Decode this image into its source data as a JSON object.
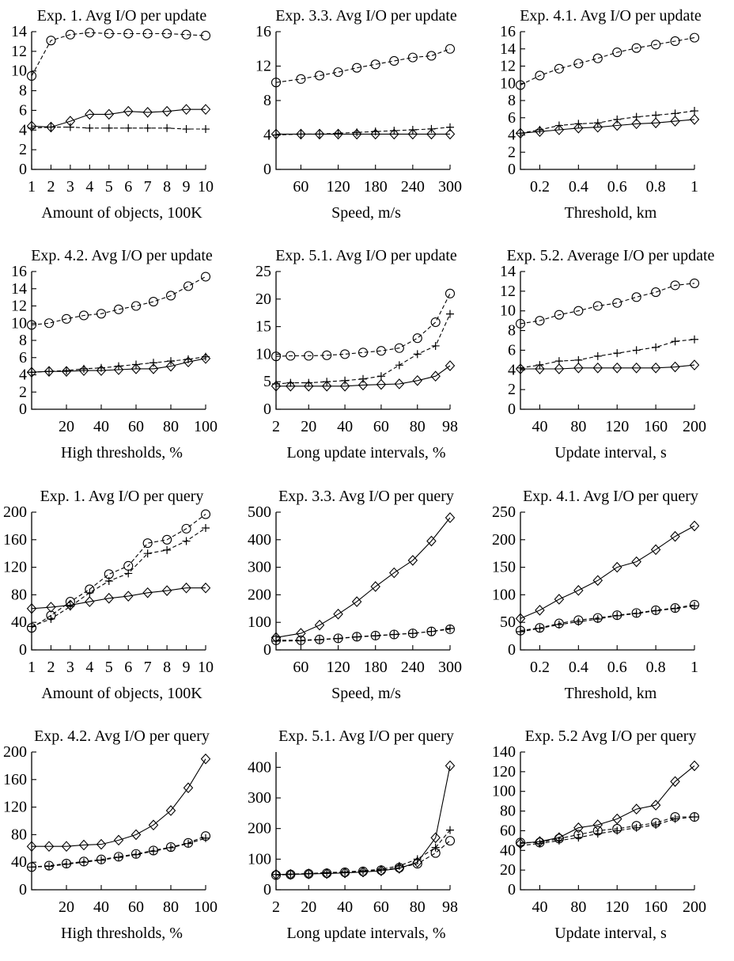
{
  "chart_data": [
    {
      "id": "u1",
      "type": "line",
      "title": "Exp. 1. Avg I/O per update",
      "xlabel": "Amount of objects, 100K",
      "xlim": [
        1,
        10
      ],
      "ylim": [
        0,
        14
      ],
      "xticks": [
        1,
        2,
        3,
        4,
        5,
        6,
        7,
        8,
        9,
        10
      ],
      "yticks": [
        0,
        2,
        4,
        6,
        8,
        10,
        12,
        14
      ],
      "x": [
        1,
        2,
        3,
        4,
        5,
        6,
        7,
        8,
        9,
        10
      ],
      "series": [
        {
          "marker": "circle",
          "dash": true,
          "values": [
            9.5,
            13.1,
            13.7,
            13.9,
            13.8,
            13.8,
            13.8,
            13.8,
            13.7,
            13.6
          ]
        },
        {
          "marker": "plus",
          "dash": true,
          "values": [
            4.2,
            4.3,
            4.3,
            4.2,
            4.2,
            4.2,
            4.2,
            4.2,
            4.1,
            4.1
          ]
        },
        {
          "marker": "diamond",
          "dash": false,
          "values": [
            4.4,
            4.3,
            4.9,
            5.6,
            5.6,
            5.9,
            5.8,
            5.9,
            6.1,
            6.1
          ]
        }
      ]
    },
    {
      "id": "u2",
      "type": "line",
      "title": "Exp. 3.3. Avg I/O per update",
      "xlabel": "Speed, m/s",
      "xlim": [
        20,
        300
      ],
      "ylim": [
        0,
        16
      ],
      "xticks": [
        60,
        120,
        180,
        240,
        300
      ],
      "yticks": [
        0,
        4,
        8,
        12,
        16
      ],
      "x": [
        20,
        60,
        90,
        120,
        150,
        180,
        210,
        240,
        270,
        300
      ],
      "series": [
        {
          "marker": "circle",
          "dash": true,
          "values": [
            10.1,
            10.5,
            10.9,
            11.3,
            11.8,
            12.2,
            12.6,
            13.0,
            13.2,
            14.0
          ]
        },
        {
          "marker": "plus",
          "dash": true,
          "values": [
            4.0,
            4.1,
            4.1,
            4.2,
            4.3,
            4.4,
            4.5,
            4.6,
            4.7,
            4.9
          ]
        },
        {
          "marker": "diamond",
          "dash": false,
          "values": [
            4.1,
            4.1,
            4.1,
            4.1,
            4.1,
            4.1,
            4.1,
            4.1,
            4.1,
            4.1
          ]
        }
      ]
    },
    {
      "id": "u3",
      "type": "line",
      "title": "Exp. 4.1. Avg I/O per update",
      "xlabel": "Threshold, km",
      "xlim": [
        0.1,
        1
      ],
      "ylim": [
        0,
        16
      ],
      "xticks": [
        0.2,
        0.4,
        0.6,
        0.8,
        1
      ],
      "yticks": [
        0,
        2,
        4,
        6,
        8,
        10,
        12,
        14,
        16
      ],
      "xticklabels": [
        "0.2",
        "0.4",
        "0.6",
        "0.8",
        "1"
      ],
      "x": [
        0.1,
        0.2,
        0.3,
        0.4,
        0.5,
        0.6,
        0.7,
        0.8,
        0.9,
        1.0
      ],
      "series": [
        {
          "marker": "circle",
          "dash": true,
          "values": [
            9.8,
            10.9,
            11.7,
            12.3,
            12.9,
            13.6,
            14.1,
            14.5,
            14.9,
            15.3
          ]
        },
        {
          "marker": "plus",
          "dash": true,
          "values": [
            4.2,
            4.6,
            5.1,
            5.3,
            5.4,
            5.8,
            6.1,
            6.3,
            6.5,
            6.8
          ]
        },
        {
          "marker": "diamond",
          "dash": false,
          "values": [
            4.2,
            4.4,
            4.6,
            4.8,
            4.9,
            5.1,
            5.3,
            5.4,
            5.6,
            5.8
          ]
        }
      ]
    },
    {
      "id": "u4",
      "type": "line",
      "title": "Exp. 4.2. Avg I/O per update",
      "xlabel": "High thresholds, %",
      "xlim": [
        0,
        100
      ],
      "ylim": [
        0,
        16
      ],
      "xticks": [
        20,
        40,
        60,
        80,
        100
      ],
      "yticks": [
        0,
        2,
        4,
        6,
        8,
        10,
        12,
        14,
        16
      ],
      "x": [
        0,
        10,
        20,
        30,
        40,
        50,
        60,
        70,
        80,
        90,
        100
      ],
      "series": [
        {
          "marker": "circle",
          "dash": true,
          "values": [
            9.8,
            10.0,
            10.5,
            10.9,
            11.1,
            11.6,
            12.0,
            12.5,
            13.2,
            14.3,
            15.4
          ]
        },
        {
          "marker": "plus",
          "dash": true,
          "values": [
            4.3,
            4.4,
            4.5,
            4.7,
            4.8,
            5.0,
            5.2,
            5.4,
            5.6,
            5.8,
            6.1
          ]
        },
        {
          "marker": "diamond",
          "dash": false,
          "values": [
            4.3,
            4.4,
            4.4,
            4.5,
            4.5,
            4.6,
            4.7,
            4.7,
            5.0,
            5.5,
            5.9
          ]
        }
      ]
    },
    {
      "id": "u5",
      "type": "line",
      "title": "Exp. 5.1. Avg I/O per update",
      "xlabel": "Long update intervals, %",
      "xlim": [
        2,
        98
      ],
      "ylim": [
        0,
        25
      ],
      "xticks": [
        2,
        20,
        40,
        60,
        80,
        98
      ],
      "yticks": [
        0,
        5,
        10,
        15,
        20,
        25
      ],
      "x": [
        2,
        10,
        20,
        30,
        40,
        50,
        60,
        70,
        80,
        90,
        98
      ],
      "series": [
        {
          "marker": "circle",
          "dash": true,
          "values": [
            9.6,
            9.7,
            9.7,
            9.8,
            10.0,
            10.3,
            10.6,
            11.1,
            12.9,
            15.8,
            21.0
          ]
        },
        {
          "marker": "plus",
          "dash": true,
          "values": [
            4.6,
            4.8,
            4.8,
            5.0,
            5.2,
            5.5,
            6.0,
            8.0,
            10.0,
            11.5,
            17.3
          ]
        },
        {
          "marker": "diamond",
          "dash": false,
          "values": [
            4.2,
            4.2,
            4.2,
            4.2,
            4.2,
            4.4,
            4.5,
            4.6,
            5.2,
            6.0,
            7.9
          ]
        }
      ]
    },
    {
      "id": "u6",
      "type": "line",
      "title": "Exp. 5.2. Average I/O per update",
      "xlabel": "Update interval, s",
      "xlim": [
        20,
        200
      ],
      "ylim": [
        0,
        14
      ],
      "xticks": [
        40,
        80,
        120,
        160,
        200
      ],
      "yticks": [
        0,
        2,
        4,
        6,
        8,
        10,
        12,
        14
      ],
      "x": [
        20,
        40,
        60,
        80,
        100,
        120,
        140,
        160,
        180,
        200
      ],
      "series": [
        {
          "marker": "circle",
          "dash": true,
          "values": [
            8.7,
            9.0,
            9.6,
            10.0,
            10.5,
            10.8,
            11.4,
            11.9,
            12.6,
            12.8
          ]
        },
        {
          "marker": "plus",
          "dash": true,
          "values": [
            4.2,
            4.5,
            4.9,
            5.0,
            5.4,
            5.7,
            6.0,
            6.3,
            6.9,
            7.1
          ]
        },
        {
          "marker": "diamond",
          "dash": false,
          "values": [
            4.1,
            4.1,
            4.1,
            4.2,
            4.2,
            4.2,
            4.2,
            4.2,
            4.3,
            4.5
          ]
        }
      ]
    },
    {
      "id": "q1",
      "type": "line",
      "title": "Exp. 1. Avg I/O per query",
      "xlabel": "Amount of objects, 100K",
      "xlim": [
        1,
        10
      ],
      "ylim": [
        0,
        200
      ],
      "xticks": [
        1,
        2,
        3,
        4,
        5,
        6,
        7,
        8,
        9,
        10
      ],
      "yticks": [
        0,
        40,
        80,
        120,
        160,
        200
      ],
      "x": [
        1,
        2,
        3,
        4,
        5,
        6,
        7,
        8,
        9,
        10
      ],
      "series": [
        {
          "marker": "circle",
          "dash": true,
          "values": [
            32,
            50,
            70,
            88,
            110,
            122,
            155,
            160,
            176,
            197
          ]
        },
        {
          "marker": "plus",
          "dash": true,
          "values": [
            34,
            45,
            63,
            83,
            100,
            111,
            140,
            145,
            158,
            177
          ]
        },
        {
          "marker": "diamond",
          "dash": false,
          "values": [
            60,
            62,
            65,
            70,
            75,
            78,
            83,
            86,
            90,
            90
          ]
        }
      ]
    },
    {
      "id": "q2",
      "type": "line",
      "title": "Exp. 3.3. Avg I/O per query",
      "xlabel": "Speed, m/s",
      "xlim": [
        20,
        300
      ],
      "ylim": [
        0,
        500
      ],
      "xticks": [
        60,
        120,
        180,
        240,
        300
      ],
      "yticks": [
        0,
        100,
        200,
        300,
        400,
        500
      ],
      "x": [
        20,
        60,
        90,
        120,
        150,
        180,
        210,
        240,
        270,
        300
      ],
      "series": [
        {
          "marker": "diamond",
          "dash": false,
          "values": [
            45,
            60,
            90,
            130,
            175,
            230,
            280,
            325,
            395,
            480
          ]
        },
        {
          "marker": "circle",
          "dash": true,
          "values": [
            35,
            35,
            38,
            42,
            48,
            52,
            56,
            60,
            67,
            75
          ]
        },
        {
          "marker": "plus",
          "dash": true,
          "values": [
            32,
            33,
            37,
            41,
            47,
            51,
            56,
            60,
            67,
            78
          ]
        }
      ]
    },
    {
      "id": "q3",
      "type": "line",
      "title": "Exp. 4.1. Avg I/O per query",
      "xlabel": "Threshold, km",
      "xlim": [
        0.1,
        1
      ],
      "ylim": [
        0,
        250
      ],
      "xticks": [
        0.2,
        0.4,
        0.6,
        0.8,
        1
      ],
      "yticks": [
        0,
        50,
        100,
        150,
        200,
        250
      ],
      "xticklabels": [
        "0.2",
        "0.4",
        "0.6",
        "0.8",
        "1"
      ],
      "x": [
        0.1,
        0.2,
        0.3,
        0.4,
        0.5,
        0.6,
        0.7,
        0.8,
        0.9,
        1.0
      ],
      "series": [
        {
          "marker": "diamond",
          "dash": false,
          "values": [
            57,
            72,
            92,
            108,
            126,
            150,
            160,
            182,
            206,
            225
          ]
        },
        {
          "marker": "circle",
          "dash": true,
          "values": [
            35,
            40,
            48,
            54,
            58,
            63,
            67,
            72,
            76,
            82
          ]
        },
        {
          "marker": "plus",
          "dash": true,
          "values": [
            33,
            39,
            46,
            51,
            56,
            62,
            66,
            71,
            75,
            80
          ]
        }
      ]
    },
    {
      "id": "q4",
      "type": "line",
      "title": "Exp. 4.2. Avg I/O per query",
      "xlabel": "High thresholds, %",
      "xlim": [
        0,
        100
      ],
      "ylim": [
        0,
        200
      ],
      "xticks": [
        20,
        40,
        60,
        80,
        100
      ],
      "yticks": [
        0,
        40,
        80,
        120,
        160,
        200
      ],
      "x": [
        0,
        10,
        20,
        30,
        40,
        50,
        60,
        70,
        80,
        90,
        100
      ],
      "series": [
        {
          "marker": "diamond",
          "dash": false,
          "values": [
            63,
            63,
            63,
            65,
            66,
            72,
            80,
            94,
            115,
            148,
            190
          ]
        },
        {
          "marker": "circle",
          "dash": true,
          "values": [
            33,
            35,
            38,
            41,
            44,
            48,
            52,
            57,
            62,
            68,
            78
          ]
        },
        {
          "marker": "plus",
          "dash": true,
          "values": [
            33,
            34,
            37,
            40,
            43,
            47,
            51,
            56,
            61,
            67,
            75
          ]
        }
      ]
    },
    {
      "id": "q5",
      "type": "line",
      "title": "Exp. 5.1. Avg I/O per query",
      "xlabel": "Long update intervals, %",
      "xlim": [
        2,
        98
      ],
      "ylim": [
        0,
        450
      ],
      "xticks": [
        2,
        20,
        40,
        60,
        80,
        98
      ],
      "yticks": [
        0,
        100,
        200,
        300,
        400
      ],
      "x": [
        2,
        10,
        20,
        30,
        40,
        50,
        60,
        70,
        80,
        90,
        98
      ],
      "series": [
        {
          "marker": "diamond",
          "dash": false,
          "values": [
            50,
            50,
            52,
            53,
            55,
            58,
            62,
            70,
            90,
            170,
            405
          ]
        },
        {
          "marker": "plus",
          "dash": true,
          "values": [
            50,
            51,
            53,
            56,
            58,
            62,
            67,
            78,
            100,
            138,
            195
          ]
        },
        {
          "marker": "circle",
          "dash": true,
          "values": [
            48,
            50,
            52,
            54,
            57,
            60,
            64,
            72,
            85,
            120,
            160
          ]
        }
      ]
    },
    {
      "id": "q6",
      "type": "line",
      "title": "Exp. 5.2 Avg I/O per query",
      "xlabel": "Update interval, s",
      "xlim": [
        20,
        200
      ],
      "ylim": [
        0,
        140
      ],
      "xticks": [
        40,
        80,
        120,
        160,
        200
      ],
      "yticks": [
        0,
        20,
        40,
        60,
        80,
        100,
        120,
        140
      ],
      "x": [
        20,
        40,
        60,
        80,
        100,
        120,
        140,
        160,
        180,
        200
      ],
      "series": [
        {
          "marker": "diamond",
          "dash": false,
          "values": [
            47,
            49,
            53,
            63,
            66,
            72,
            82,
            86,
            110,
            126
          ]
        },
        {
          "marker": "circle",
          "dash": true,
          "values": [
            48,
            48,
            52,
            56,
            60,
            62,
            65,
            68,
            74,
            74
          ]
        },
        {
          "marker": "plus",
          "dash": true,
          "values": [
            45,
            47,
            50,
            53,
            57,
            60,
            63,
            66,
            72,
            74
          ]
        }
      ]
    }
  ]
}
